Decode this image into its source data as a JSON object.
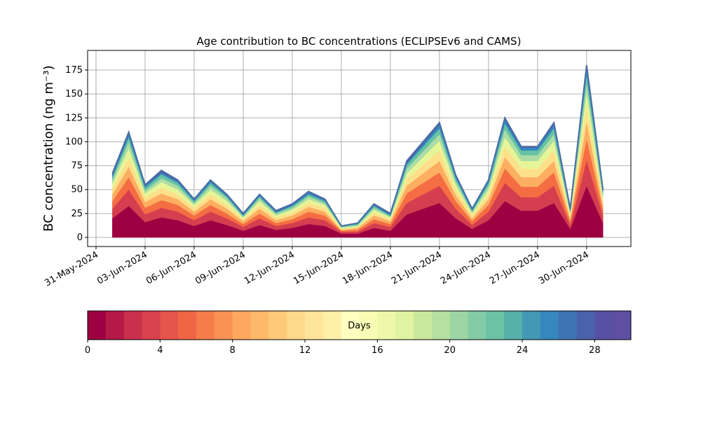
{
  "chart_data": {
    "type": "stacked_area",
    "title": "Age contribution to BC concentrations (ECLIPSEv6 and CAMS)",
    "y_label": "BC concentration (ng m⁻³)",
    "x": [
      "2024-06-01",
      "2024-06-02",
      "2024-06-03",
      "2024-06-04",
      "2024-06-05",
      "2024-06-06",
      "2024-06-07",
      "2024-06-08",
      "2024-06-09",
      "2024-06-10",
      "2024-06-11",
      "2024-06-12",
      "2024-06-13",
      "2024-06-14",
      "2024-06-15",
      "2024-06-16",
      "2024-06-17",
      "2024-06-18",
      "2024-06-19",
      "2024-06-20",
      "2024-06-21",
      "2024-06-22",
      "2024-06-23",
      "2024-06-24",
      "2024-06-25",
      "2024-06-26",
      "2024-06-27",
      "2024-06-28",
      "2024-06-29",
      "2024-06-30",
      "2024-07-01"
    ],
    "series": [
      {
        "color": "#9e0142",
        "values": [
          20,
          33,
          16,
          21,
          18,
          12,
          18,
          13,
          7,
          13,
          8,
          10,
          14,
          12,
          4,
          4,
          10,
          7,
          24,
          30,
          36,
          20,
          9,
          18,
          38,
          28,
          28,
          36,
          9,
          54,
          15
        ]
      },
      {
        "color": "#d53e4f",
        "values": [
          10,
          17,
          8,
          10,
          9,
          6,
          9,
          7,
          4,
          7,
          4,
          5,
          7,
          6,
          2,
          2,
          5,
          4,
          12,
          15,
          18,
          10,
          4,
          9,
          19,
          14,
          14,
          18,
          4,
          27,
          8
        ]
      },
      {
        "color": "#f46d43",
        "values": [
          8,
          13,
          7,
          8,
          7,
          5,
          7,
          5,
          3,
          5,
          3,
          4,
          6,
          5,
          1,
          2,
          4,
          3,
          10,
          12,
          14,
          8,
          4,
          7,
          15,
          11,
          11,
          14,
          4,
          22,
          6
        ]
      },
      {
        "color": "#fdae61",
        "values": [
          7,
          11,
          6,
          7,
          6,
          4,
          6,
          5,
          3,
          5,
          3,
          4,
          5,
          4,
          1,
          2,
          4,
          3,
          8,
          10,
          12,
          6,
          3,
          6,
          12,
          10,
          10,
          12,
          3,
          18,
          5
        ]
      },
      {
        "color": "#fee08b",
        "values": [
          6,
          10,
          5,
          6,
          5,
          4,
          5,
          4,
          2,
          4,
          3,
          3,
          4,
          4,
          1,
          1,
          3,
          2,
          7,
          9,
          11,
          6,
          3,
          5,
          11,
          9,
          9,
          11,
          3,
          16,
          4
        ]
      },
      {
        "color": "#e6f598",
        "values": [
          5,
          9,
          4,
          6,
          5,
          3,
          5,
          4,
          2,
          4,
          2,
          3,
          4,
          3,
          1,
          1,
          3,
          2,
          6,
          8,
          10,
          5,
          2,
          5,
          10,
          8,
          8,
          10,
          2,
          14,
          4
        ]
      },
      {
        "color": "#abdda4",
        "values": [
          4,
          7,
          3,
          4,
          4,
          2,
          4,
          3,
          1,
          3,
          2,
          2,
          3,
          2,
          1,
          1,
          2,
          1,
          5,
          6,
          7,
          4,
          2,
          4,
          8,
          6,
          6,
          7,
          2,
          11,
          3
        ]
      },
      {
        "color": "#66c2a5",
        "values": [
          3,
          5,
          3,
          4,
          3,
          2,
          3,
          2,
          1,
          2,
          1,
          2,
          2,
          2,
          1,
          1,
          2,
          1,
          4,
          5,
          6,
          3,
          1,
          3,
          6,
          5,
          5,
          6,
          1,
          9,
          2
        ]
      },
      {
        "color": "#3288bd",
        "values": [
          2,
          3,
          2,
          2,
          2,
          1,
          2,
          1,
          1,
          1,
          1,
          1,
          2,
          1,
          0,
          1,
          1,
          1,
          2,
          3,
          4,
          2,
          1,
          2,
          4,
          3,
          3,
          4,
          1,
          5,
          2
        ]
      },
      {
        "color": "#5e4fa2",
        "values": [
          2,
          2,
          1,
          2,
          1,
          1,
          1,
          1,
          1,
          1,
          1,
          1,
          1,
          1,
          0,
          0,
          1,
          1,
          2,
          2,
          2,
          1,
          1,
          1,
          2,
          1,
          1,
          2,
          1,
          4,
          1
        ]
      }
    ],
    "xlim": [
      "2024-05-30T11:40",
      "2024-07-02T17:00"
    ],
    "xticks": [
      {
        "value": "2024-05-31",
        "label": "31-May-2024"
      },
      {
        "value": "2024-06-03",
        "label": "03-Jun-2024"
      },
      {
        "value": "2024-06-06",
        "label": "06-Jun-2024"
      },
      {
        "value": "2024-06-09",
        "label": "09-Jun-2024"
      },
      {
        "value": "2024-06-12",
        "label": "12-Jun-2024"
      },
      {
        "value": "2024-06-15",
        "label": "15-Jun-2024"
      },
      {
        "value": "2024-06-18",
        "label": "18-Jun-2024"
      },
      {
        "value": "2024-06-21",
        "label": "21-Jun-2024"
      },
      {
        "value": "2024-06-24",
        "label": "24-Jun-2024"
      },
      {
        "value": "2024-06-27",
        "label": "27-Jun-2024"
      },
      {
        "value": "2024-06-30",
        "label": "30-Jun-2024"
      }
    ],
    "ylim": [
      -9.5,
      195.5
    ],
    "yticks": [
      0,
      25,
      50,
      75,
      100,
      125,
      150,
      175
    ],
    "grid": true,
    "colorbar": {
      "label": "Days",
      "lim": [
        0,
        30
      ],
      "ticks": [
        0,
        4,
        8,
        12,
        16,
        20,
        24,
        28
      ],
      "colors": [
        "#9e0142",
        "#b41947",
        "#c9304c",
        "#d8434e",
        "#e5554a",
        "#ef6645",
        "#f67c4a",
        "#f99254",
        "#fca85e",
        "#fdb96a",
        "#fdca79",
        "#fed98a",
        "#fee59a",
        "#fff0a8",
        "#ffffbf",
        "#f8fcb4",
        "#eef8a8",
        "#e0f3a1",
        "#cbe99d",
        "#b5e09f",
        "#9dd6a4",
        "#83cba5",
        "#6bc2a5",
        "#56b1a9",
        "#4199b5",
        "#3587bc",
        "#3d75b4",
        "#4a62ab",
        "#5851a3",
        "#5e4fa2"
      ]
    }
  }
}
